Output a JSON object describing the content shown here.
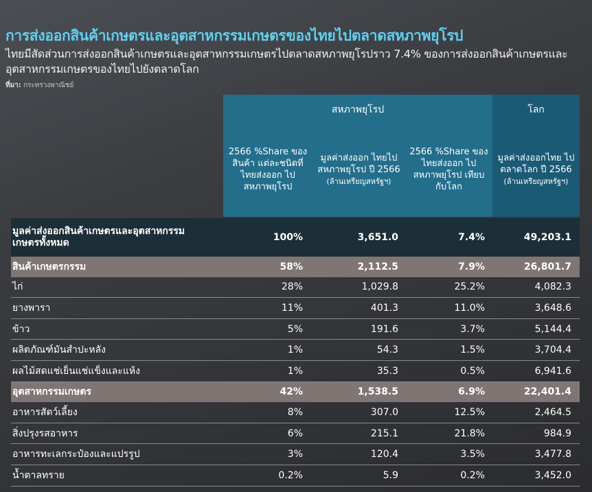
{
  "title": "การส่งออกสินค้าเกษตรและอุตสาหกรรมเกษตรของไทยไปตลาดสหภาพยุโรป",
  "subtitle": "ไทยมีสัดส่วนการส่งออกสินค้าเกษตรและอุตสาหกรรมเกษตรไปตลาดสหภาพยุโรปราว 7.4% ของการส่งออกสินค้าเกษตรและอุตสาหกรรมเกษตรของไทยไปยังตลาดโลก",
  "source": {
    "label": "ที่มา:",
    "text": "กระทรวงพาณิชย์"
  },
  "header": {
    "eu_label": "สหภาพยุโรป",
    "world_label": "โลก",
    "col1": "2566 %Share ของสินค้า แต่ละชนิดที่ ไทยส่งออก ไปสหภาพยุโรป",
    "col2_main": "มูลค่าส่งออก ไทยไปสหภาพยุโรป ปี 2566",
    "col2_unit": "(ล้านเหรียญสหรัฐฯ)",
    "col3": "2566 %Share ของไทยส่งออก ไปสหภาพยุโรป เทียบกับโลก",
    "col4_main": "มูลค่าส่งออกไทย ไปตลาดโลก ปี 2566",
    "col4_unit": "(ล้านเหรียญสหรัฐฯ)"
  },
  "rows": [
    {
      "name": "มูลค่าส่งออกสินค้าเกษตรและอุตสาหกรรมเกษตรทั้งหมด",
      "share": "100%",
      "eu_value": "3,651.0",
      "eu_share_world": "7.4%",
      "world_value": "49,203.1"
    },
    {
      "name": "สินค้าเกษตรกรรม",
      "share": "58%",
      "eu_value": "2,112.5",
      "eu_share_world": "7.9%",
      "world_value": "26,801.7"
    },
    {
      "name": "ไก่",
      "share": "28%",
      "eu_value": "1,029.8",
      "eu_share_world": "25.2%",
      "world_value": "4,082.3"
    },
    {
      "name": "ยางพารา",
      "share": "11%",
      "eu_value": "401.3",
      "eu_share_world": "11.0%",
      "world_value": "3,648.6"
    },
    {
      "name": "ข้าว",
      "share": "5%",
      "eu_value": "191.6",
      "eu_share_world": "3.7%",
      "world_value": "5,144.4"
    },
    {
      "name": "ผลิตภัณฑ์มันสำปะหลัง",
      "share": "1%",
      "eu_value": "54.3",
      "eu_share_world": "1.5%",
      "world_value": "3,704.4"
    },
    {
      "name": "ผลไม้สดแช่เย็นแช่แข็งและแห้ง",
      "share": "1%",
      "eu_value": "35.3",
      "eu_share_world": "0.5%",
      "world_value": "6,941.6"
    },
    {
      "name": "อุตสาหกรรมเกษตร",
      "share": "42%",
      "eu_value": "1,538.5",
      "eu_share_world": "6.9%",
      "world_value": "22,401.4"
    },
    {
      "name": "อาหารสัตว์เลี้ยง",
      "share": "8%",
      "eu_value": "307.0",
      "eu_share_world": "12.5%",
      "world_value": "2,464.5"
    },
    {
      "name": "สิ่งปรุงรสอาหาร",
      "share": "6%",
      "eu_value": "215.1",
      "eu_share_world": "21.8%",
      "world_value": "984.9"
    },
    {
      "name": "อาหารทะเลกระป๋องและแปรรูป",
      "share": "3%",
      "eu_value": "120.4",
      "eu_share_world": "3.5%",
      "world_value": "3,477.8"
    },
    {
      "name": "น้ำตาลทราย",
      "share": "0.2%",
      "eu_value": "5.9",
      "eu_share_world": "0.2%",
      "world_value": "3,452.0"
    }
  ]
}
